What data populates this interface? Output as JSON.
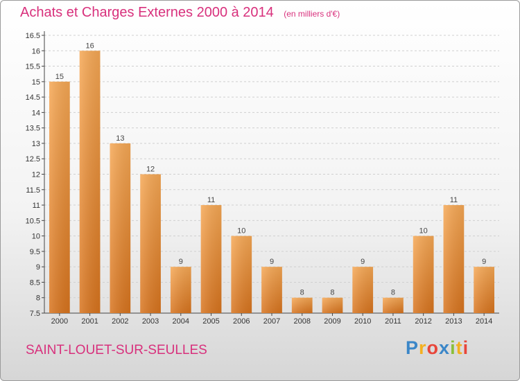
{
  "title": "Achats et Charges Externes 2000 à 2014",
  "unit": "(en milliers d'€)",
  "location": "SAINT-LOUET-SUR-SEULLES",
  "logo": {
    "letters": [
      "P",
      "r",
      "o",
      "x",
      "i",
      "t",
      "i"
    ],
    "colors": [
      "#3a86c8",
      "#f3b020",
      "#e8463a",
      "#3a86c8",
      "#8bbf3a",
      "#f3b020",
      "#e8463a"
    ]
  },
  "chart_data": {
    "type": "bar",
    "title": "Achats et Charges Externes 2000 à 2014",
    "xlabel": "",
    "ylabel": "",
    "categories": [
      "2000",
      "2001",
      "2002",
      "2003",
      "2004",
      "2005",
      "2006",
      "2007",
      "2008",
      "2009",
      "2010",
      "2011",
      "2012",
      "2013",
      "2014"
    ],
    "values": [
      15,
      16,
      13,
      12,
      9,
      11,
      10,
      9,
      8,
      8,
      9,
      8,
      10,
      11,
      9
    ],
    "value_labels": [
      "15",
      "16",
      "13",
      "12",
      "9",
      "11",
      "10",
      "9",
      "8",
      "8",
      "9",
      "8",
      "10",
      "11",
      "9"
    ],
    "ylim": [
      7.5,
      16.5
    ],
    "yticks": [
      "7.5",
      "8",
      "8.5",
      "9",
      "9.5",
      "10",
      "10.5",
      "11",
      "11.5",
      "12",
      "12.5",
      "13",
      "13.5",
      "14",
      "14.5",
      "15",
      "15.5",
      "16",
      "16.5"
    ],
    "grid": true,
    "bar_color_top": "#f6a855",
    "bar_color_bottom": "#d8741e"
  }
}
